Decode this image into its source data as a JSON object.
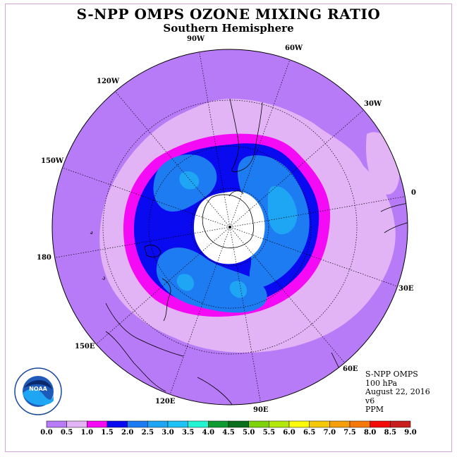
{
  "title": "S-NPP OMPS OZONE MIXING RATIO",
  "subtitle": "Southern Hemisphere",
  "longitude_labels": [
    {
      "text": "90W",
      "lon": -90
    },
    {
      "text": "60W",
      "lon": -60
    },
    {
      "text": "30W",
      "lon": -30
    },
    {
      "text": "0",
      "lon": 0
    },
    {
      "text": "30E",
      "lon": 30
    },
    {
      "text": "60E",
      "lon": 60
    },
    {
      "text": "90E",
      "lon": 90
    },
    {
      "text": "120E",
      "lon": 120
    },
    {
      "text": "150E",
      "lon": 150
    },
    {
      "text": "180",
      "lon": 180
    },
    {
      "text": "150W",
      "lon": -150
    },
    {
      "text": "120W",
      "lon": -120
    }
  ],
  "info": {
    "instrument": "S-NPP OMPS",
    "level": "100 hPa",
    "date": "August 22, 2016",
    "version": "v6",
    "units": "PPM"
  },
  "colorbar": {
    "ticks": [
      "0.0",
      "0.5",
      "1.0",
      "1.5",
      "2.0",
      "2.5",
      "3.0",
      "3.5",
      "4.0",
      "4.5",
      "5.0",
      "5.5",
      "6.0",
      "6.5",
      "7.0",
      "7.5",
      "8.0",
      "8.5",
      "9.0"
    ],
    "colors": [
      "#b87bf8",
      "#e2b4f6",
      "#f50af5",
      "#0a0af0",
      "#1e7cf2",
      "#1ea6f5",
      "#1ec2f5",
      "#23f5d2",
      "#0f9a32",
      "#0b6e1e",
      "#7ed20a",
      "#b4e80a",
      "#fafa0a",
      "#f5c80a",
      "#f5a00a",
      "#f5780a",
      "#f50a0a",
      "#c81e1e",
      "#8c5a3c"
    ]
  },
  "map_colors": {
    "background": "#b87bf8",
    "contours": [
      "#e2b4f6",
      "#f50af5",
      "#0a0af0",
      "#1e7cf2",
      "#1ea6f5"
    ],
    "polar_night": "#ffffff"
  },
  "logo": {
    "text": "NOAA"
  }
}
